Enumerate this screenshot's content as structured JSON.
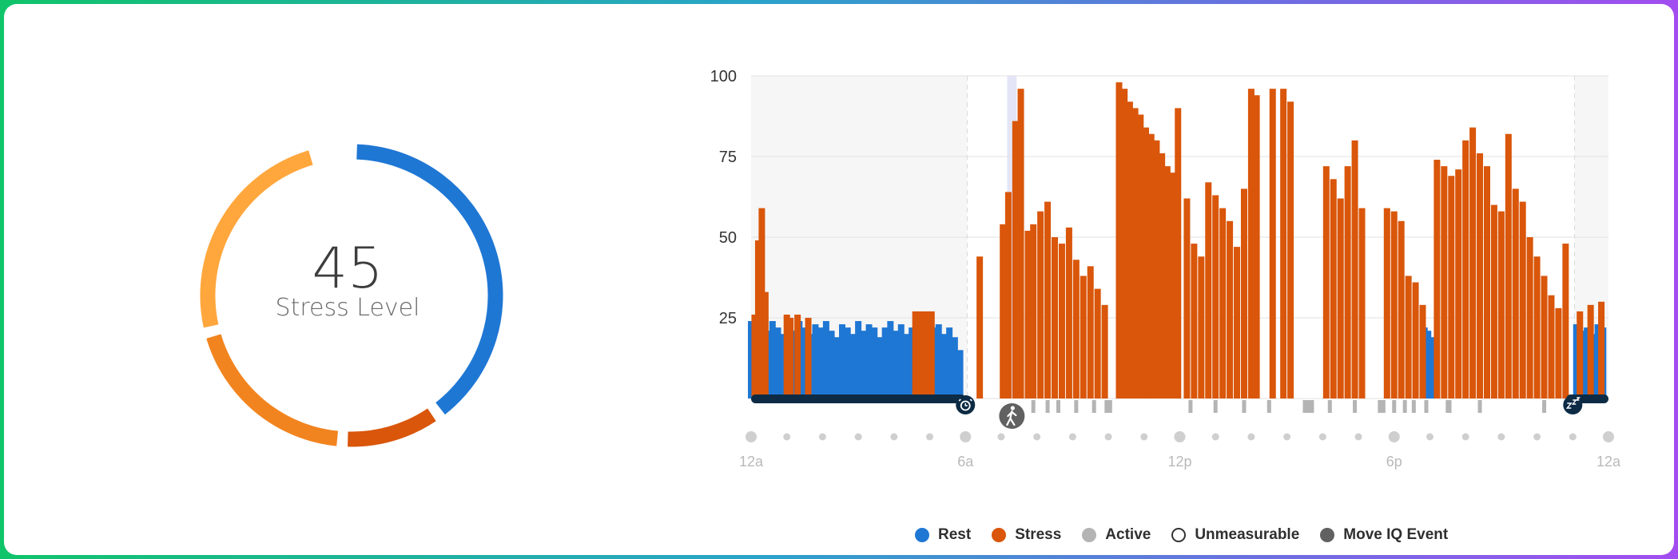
{
  "summary": {
    "value": "45",
    "label": "Stress Level"
  },
  "ring_segments": [
    {
      "name": "rest",
      "color": "#1f77d4",
      "fraction": 0.4
    },
    {
      "name": "high-stress",
      "color": "#d9560a",
      "fraction": 0.11
    },
    {
      "name": "medium-stress",
      "color": "#f2841f",
      "fraction": 0.2
    },
    {
      "name": "low-stress",
      "color": "#ffa73d",
      "fraction": 0.25
    }
  ],
  "legend": [
    {
      "label": "Rest",
      "color": "#1f77d4",
      "style": "fill"
    },
    {
      "label": "Stress",
      "color": "#d9560a",
      "style": "fill"
    },
    {
      "label": "Active",
      "color": "#b4b4b4",
      "style": "fill"
    },
    {
      "label": "Unmeasurable",
      "color": "#ffffff",
      "style": "outline"
    },
    {
      "label": "Move IQ Event",
      "color": "#616161",
      "style": "fill"
    }
  ],
  "chart_data": {
    "type": "bar",
    "xlabel": "",
    "ylabel": "",
    "y_range": [
      0,
      100
    ],
    "y_ticks": [
      "25",
      "50",
      "75",
      "100"
    ],
    "x_range_hours": [
      0,
      24
    ],
    "x_ticks": [
      "12a",
      "6a",
      "12p",
      "6p",
      "12a"
    ],
    "sleep_windows": [
      [
        0,
        6.05
      ],
      [
        23.05,
        24
      ]
    ],
    "series": [
      {
        "name": "Rest",
        "color": "#1f77d4",
        "points": [
          [
            0.0,
            24
          ],
          [
            0.15,
            22
          ],
          [
            0.3,
            23
          ],
          [
            0.45,
            21
          ],
          [
            0.6,
            24
          ],
          [
            0.75,
            22
          ],
          [
            0.9,
            20
          ],
          [
            1.05,
            23
          ],
          [
            1.2,
            21
          ],
          [
            1.35,
            24
          ],
          [
            1.5,
            22
          ],
          [
            1.65,
            20
          ],
          [
            1.8,
            23
          ],
          [
            1.95,
            22
          ],
          [
            2.1,
            24
          ],
          [
            2.25,
            21
          ],
          [
            2.4,
            19
          ],
          [
            2.55,
            23
          ],
          [
            2.7,
            22
          ],
          [
            2.85,
            20
          ],
          [
            3.0,
            24
          ],
          [
            3.15,
            21
          ],
          [
            3.3,
            23
          ],
          [
            3.45,
            22
          ],
          [
            3.6,
            19
          ],
          [
            3.75,
            22
          ],
          [
            3.9,
            24
          ],
          [
            4.05,
            21
          ],
          [
            4.2,
            23
          ],
          [
            4.35,
            20
          ],
          [
            4.5,
            22
          ],
          [
            4.65,
            24
          ],
          [
            4.8,
            21
          ],
          [
            4.95,
            19
          ],
          [
            5.1,
            22
          ],
          [
            5.25,
            23
          ],
          [
            5.4,
            20
          ],
          [
            5.55,
            22
          ],
          [
            5.7,
            19
          ],
          [
            5.85,
            15
          ],
          [
            18.85,
            22
          ],
          [
            18.95,
            21
          ],
          [
            19.05,
            19
          ],
          [
            23.1,
            23
          ],
          [
            23.25,
            21
          ],
          [
            23.4,
            22
          ],
          [
            23.55,
            20
          ],
          [
            23.7,
            23
          ],
          [
            23.85,
            22
          ]
        ]
      },
      {
        "name": "Stress",
        "color": "#d9560a",
        "points": [
          [
            0.1,
            26
          ],
          [
            0.2,
            49
          ],
          [
            0.3,
            59
          ],
          [
            0.4,
            33
          ],
          [
            1.0,
            26
          ],
          [
            1.1,
            25
          ],
          [
            1.3,
            26
          ],
          [
            1.6,
            25
          ],
          [
            4.6,
            27
          ],
          [
            4.75,
            27
          ],
          [
            4.9,
            27
          ],
          [
            5.05,
            27
          ],
          [
            6.4,
            44
          ],
          [
            7.05,
            54
          ],
          [
            7.2,
            64
          ],
          [
            7.4,
            86
          ],
          [
            7.55,
            96
          ],
          [
            7.75,
            52
          ],
          [
            7.9,
            54
          ],
          [
            8.1,
            58
          ],
          [
            8.3,
            61
          ],
          [
            8.5,
            50
          ],
          [
            8.7,
            48
          ],
          [
            8.9,
            53
          ],
          [
            9.1,
            43
          ],
          [
            9.3,
            38
          ],
          [
            9.5,
            41
          ],
          [
            9.7,
            34
          ],
          [
            9.9,
            29
          ],
          [
            10.3,
            98
          ],
          [
            10.45,
            96
          ],
          [
            10.6,
            92
          ],
          [
            10.75,
            90
          ],
          [
            10.9,
            88
          ],
          [
            11.05,
            84
          ],
          [
            11.2,
            82
          ],
          [
            11.35,
            80
          ],
          [
            11.5,
            76
          ],
          [
            11.65,
            72
          ],
          [
            11.8,
            70
          ],
          [
            11.95,
            90
          ],
          [
            12.2,
            62
          ],
          [
            12.4,
            48
          ],
          [
            12.6,
            44
          ],
          [
            12.8,
            67
          ],
          [
            13.0,
            63
          ],
          [
            13.2,
            59
          ],
          [
            13.4,
            55
          ],
          [
            13.6,
            47
          ],
          [
            13.8,
            65
          ],
          [
            14.0,
            96
          ],
          [
            14.15,
            94
          ],
          [
            14.6,
            96
          ],
          [
            14.9,
            96
          ],
          [
            15.1,
            92
          ],
          [
            16.1,
            72
          ],
          [
            16.3,
            68
          ],
          [
            16.5,
            62
          ],
          [
            16.7,
            72
          ],
          [
            16.9,
            80
          ],
          [
            17.1,
            59
          ],
          [
            17.8,
            59
          ],
          [
            18.0,
            58
          ],
          [
            18.2,
            55
          ],
          [
            18.4,
            38
          ],
          [
            18.6,
            36
          ],
          [
            18.8,
            29
          ],
          [
            19.2,
            74
          ],
          [
            19.4,
            72
          ],
          [
            19.6,
            69
          ],
          [
            19.8,
            71
          ],
          [
            20.0,
            80
          ],
          [
            20.2,
            84
          ],
          [
            20.4,
            76
          ],
          [
            20.6,
            72
          ],
          [
            20.8,
            60
          ],
          [
            21.0,
            58
          ],
          [
            21.2,
            82
          ],
          [
            21.4,
            65
          ],
          [
            21.6,
            61
          ],
          [
            21.8,
            50
          ],
          [
            22.0,
            44
          ],
          [
            22.2,
            38
          ],
          [
            22.4,
            32
          ],
          [
            22.6,
            28
          ],
          [
            22.8,
            48
          ],
          [
            23.2,
            27
          ],
          [
            23.5,
            29
          ],
          [
            23.8,
            30
          ]
        ]
      }
    ],
    "active_markers": [
      7.9,
      8.3,
      8.6,
      9.1,
      9.6,
      9.95,
      10.05,
      12.3,
      13.0,
      13.8,
      14.5,
      15.5,
      15.6,
      15.7,
      16.2,
      16.9,
      17.6,
      17.7,
      18.0,
      18.3,
      18.55,
      18.9,
      19.5,
      19.55,
      20.4,
      22.2
    ],
    "move_iq_event_hour": 7.3,
    "wake_marker_hour": 6.0,
    "sleep_marker_hour": 23.0
  }
}
